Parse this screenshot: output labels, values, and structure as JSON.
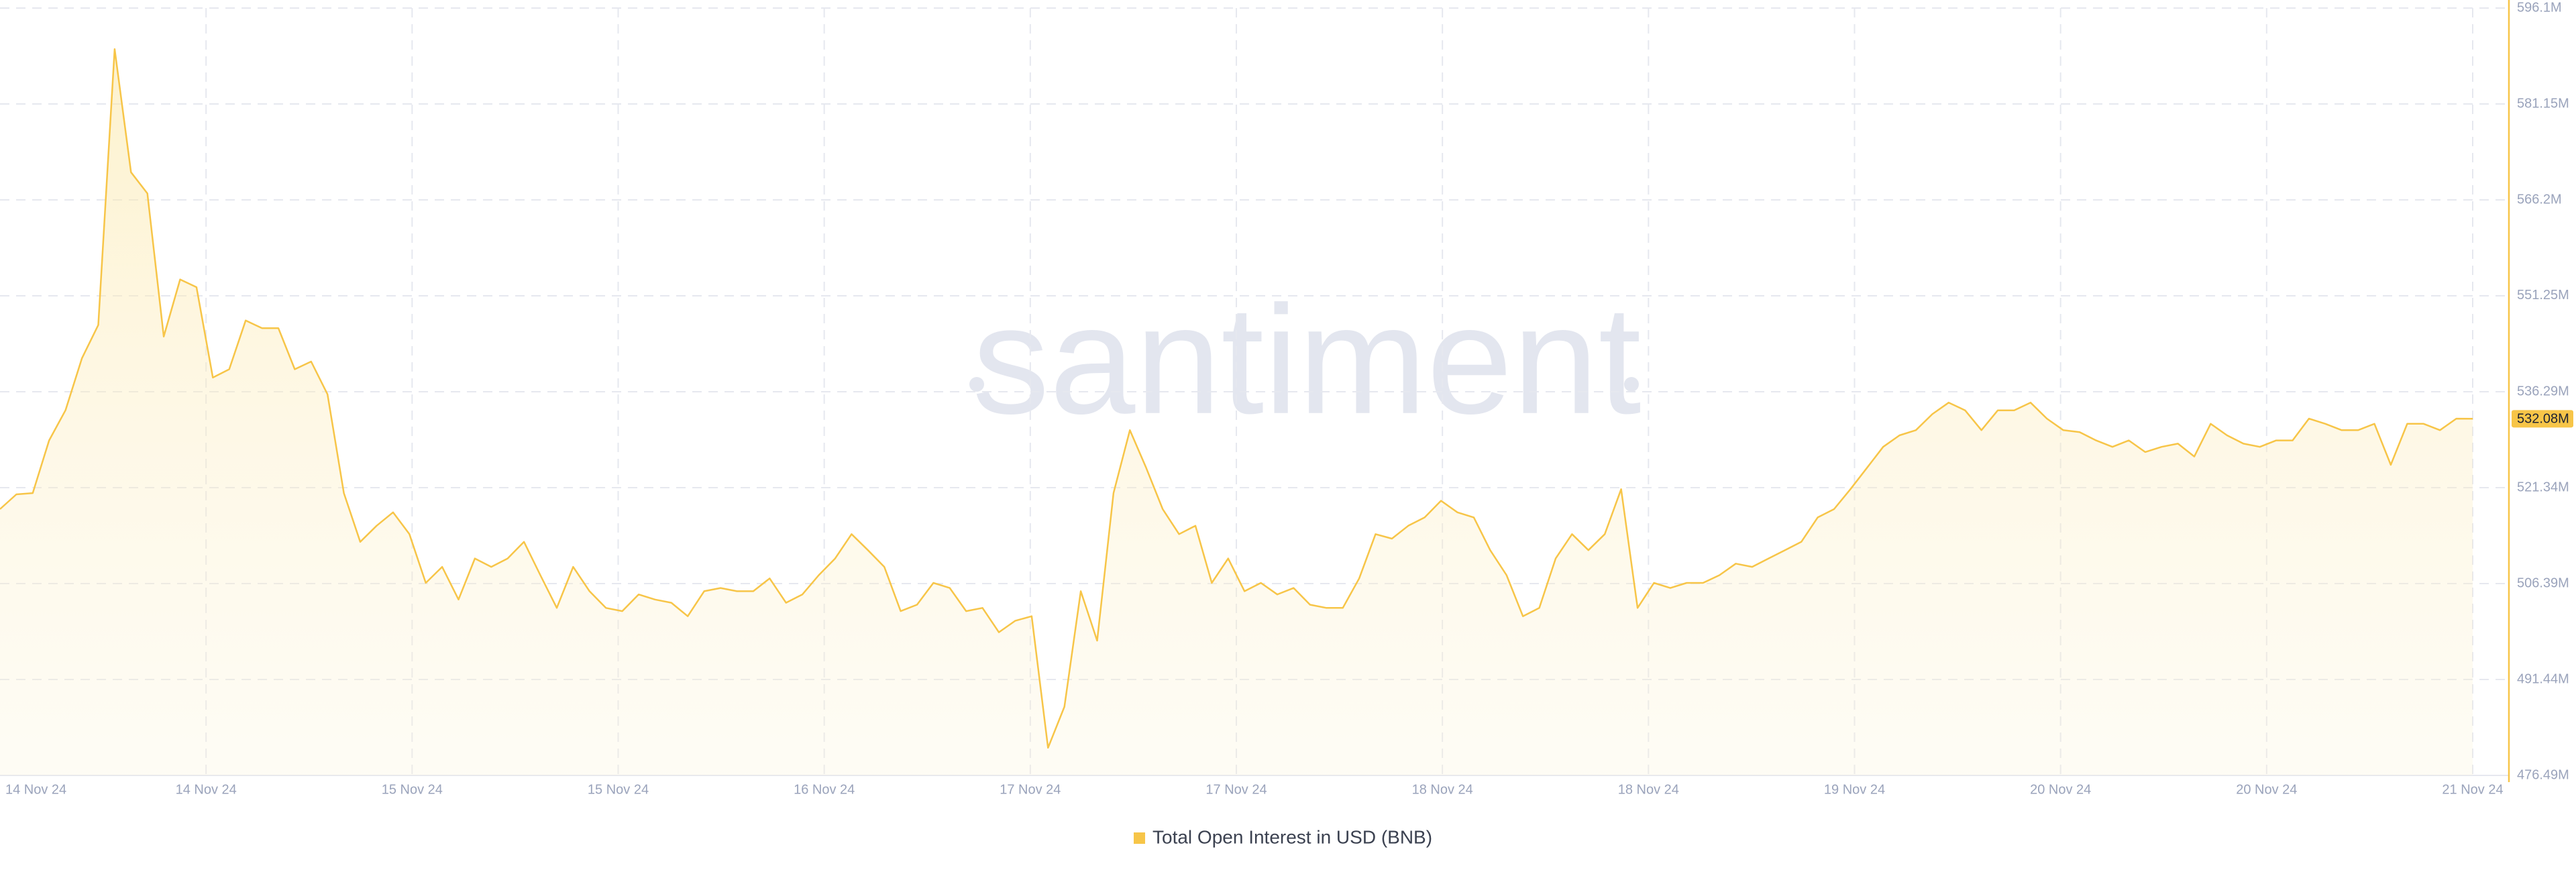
{
  "chart_data": {
    "type": "line",
    "watermark": "santiment",
    "xtick_labels": [
      "14 Nov 24",
      "14 Nov 24",
      "15 Nov 24",
      "15 Nov 24",
      "16 Nov 24",
      "17 Nov 24",
      "17 Nov 24",
      "18 Nov 24",
      "18 Nov 24",
      "19 Nov 24",
      "20 Nov 24",
      "20 Nov 24",
      "21 Nov 24"
    ],
    "ylim": [
      476.49,
      596.1
    ],
    "yticks": [
      {
        "value": 476.49,
        "label": "476.49M"
      },
      {
        "value": 491.44,
        "label": "491.44M"
      },
      {
        "value": 506.39,
        "label": "506.39M"
      },
      {
        "value": 521.34,
        "label": "521.34M"
      },
      {
        "value": 536.29,
        "label": "536.29M"
      },
      {
        "value": 551.25,
        "label": "551.25M"
      },
      {
        "value": 566.2,
        "label": "566.2M"
      },
      {
        "value": 581.15,
        "label": "581.15M"
      },
      {
        "value": 596.1,
        "label": "596.1M"
      }
    ],
    "grid": true,
    "series": [
      {
        "name": "Total Open Interest in USD (BNB)",
        "color": "#f7c548",
        "values": [
          518.0,
          520.3,
          520.5,
          528.7,
          533.4,
          541.5,
          546.7,
          589.7,
          570.5,
          567.2,
          544.9,
          553.8,
          552.6,
          538.5,
          539.8,
          547.4,
          546.2,
          546.2,
          539.8,
          541.0,
          535.9,
          520.5,
          512.9,
          515.4,
          517.5,
          514.1,
          506.5,
          509.0,
          503.9,
          510.3,
          509.0,
          510.3,
          512.9,
          507.7,
          502.6,
          509.0,
          505.2,
          502.6,
          502.1,
          504.7,
          503.9,
          503.4,
          501.3,
          505.2,
          505.7,
          505.2,
          505.2,
          507.2,
          503.4,
          504.7,
          507.7,
          510.3,
          514.1,
          511.6,
          509.0,
          502.1,
          503.1,
          506.5,
          505.7,
          502.1,
          502.6,
          498.8,
          500.6,
          501.3,
          480.8,
          487.2,
          505.2,
          497.5,
          520.5,
          530.3,
          524.4,
          518.0,
          514.1,
          515.4,
          506.5,
          510.3,
          505.2,
          506.5,
          504.7,
          505.7,
          503.1,
          502.6,
          502.6,
          507.2,
          514.1,
          513.4,
          515.4,
          516.7,
          519.3,
          517.5,
          516.7,
          511.6,
          507.7,
          501.3,
          502.6,
          510.3,
          514.1,
          511.6,
          514.1,
          521.1,
          502.6,
          506.5,
          505.7,
          506.5,
          506.5,
          507.7,
          509.5,
          509.0,
          510.3,
          511.6,
          512.9,
          516.7,
          518.0,
          521.1,
          524.4,
          527.7,
          529.5,
          530.3,
          532.8,
          534.6,
          533.4,
          530.3,
          533.4,
          533.4,
          534.6,
          532.1,
          530.3,
          530.0,
          528.7,
          527.7,
          528.7,
          526.9,
          527.7,
          528.2,
          526.2,
          531.3,
          529.5,
          528.2,
          527.7,
          528.7,
          528.7,
          532.1,
          531.3,
          530.3,
          530.3,
          531.3,
          524.9,
          531.3,
          531.3,
          530.3,
          532.1,
          532.08
        ],
        "last_value_label": "532.08M"
      }
    ]
  }
}
